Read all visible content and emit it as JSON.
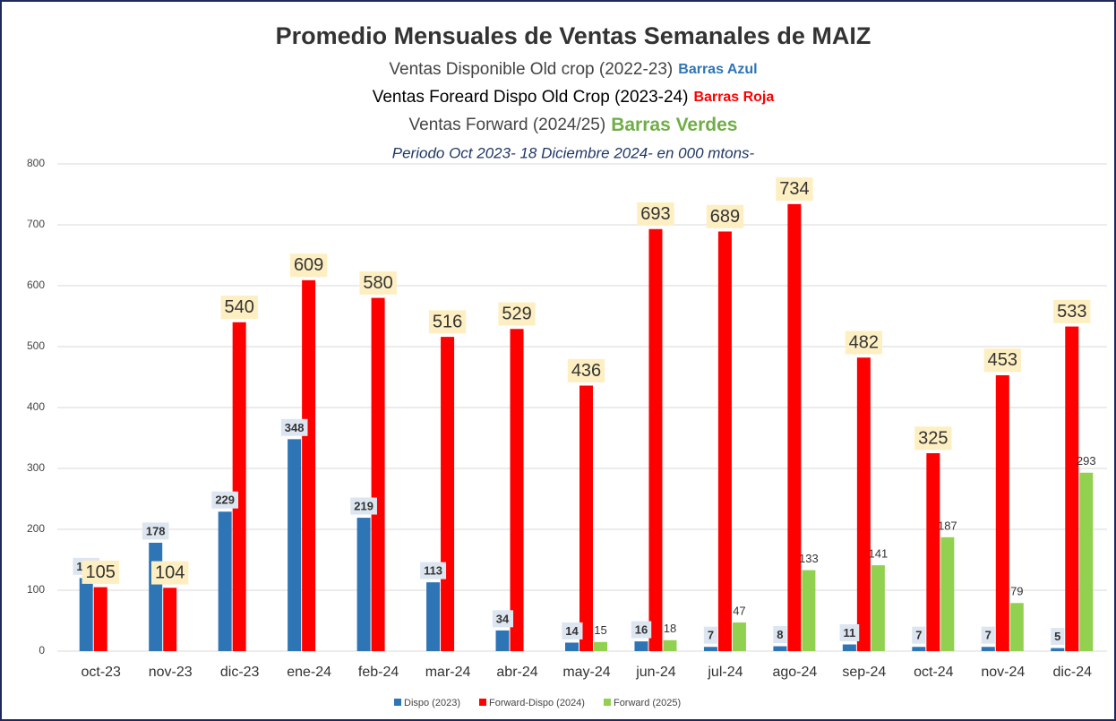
{
  "chart_data": {
    "type": "bar",
    "title": "Promedio Mensuales de Ventas Semanales de MAIZ",
    "subtitle_lines": [
      {
        "text": "Ventas Disponible Old crop  (2022-23)",
        "highlight": "Barras Azul",
        "highlight_color": "#2e75b6"
      },
      {
        "text": "Ventas Foreard Dispo Old  Crop (2023-24)",
        "highlight": "Barras Roja",
        "highlight_color": "#ff0000"
      },
      {
        "text": "Ventas Forward (2024/25)",
        "highlight": "Barras Verdes",
        "highlight_color": "#70ad47"
      }
    ],
    "period": "Periodo Oct 2023- 18 Diciembre 2024- en 000 mtons-",
    "categories": [
      "oct-23",
      "nov-23",
      "dic-23",
      "ene-24",
      "feb-24",
      "mar-24",
      "abr-24",
      "may-24",
      "jun-24",
      "jul-24",
      "ago-24",
      "sep-24",
      "oct-24",
      "nov-24",
      "dic-24"
    ],
    "series": [
      {
        "name": "Dispo (2023)",
        "color": "#2e75b6",
        "values": [
          120,
          178,
          229,
          348,
          219,
          113,
          34,
          14,
          16,
          7,
          8,
          11,
          7,
          7,
          5
        ]
      },
      {
        "name": "Forward-Dispo (2024)",
        "color": "#ff0000",
        "values": [
          105,
          104,
          540,
          609,
          580,
          516,
          529,
          436,
          693,
          689,
          734,
          482,
          325,
          453,
          533
        ]
      },
      {
        "name": "Forward (2025)",
        "color": "#92d050",
        "values": [
          null,
          null,
          null,
          null,
          null,
          null,
          null,
          15,
          18,
          47,
          133,
          141,
          187,
          79,
          293
        ]
      }
    ],
    "ylim": [
      0,
      800
    ],
    "yticks": [
      0,
      100,
      200,
      300,
      400,
      500,
      600,
      700,
      800
    ],
    "grid": true,
    "legend": "bottom"
  }
}
